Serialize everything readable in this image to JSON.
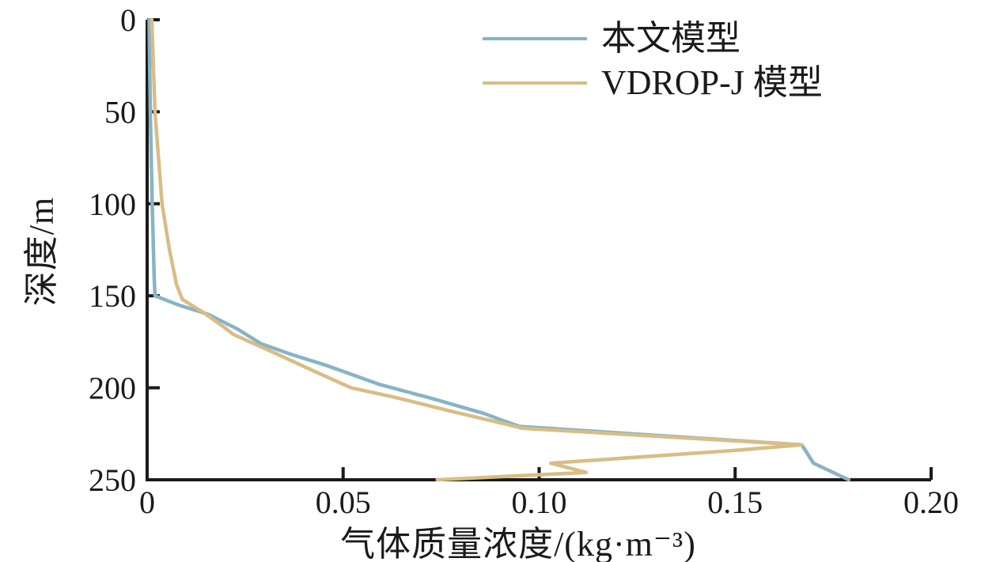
{
  "figure": {
    "background": "#ffffff",
    "axis_color": "#1a1a1a",
    "text_color": "#1a1a1a"
  },
  "legend": {
    "items": [
      {
        "label": "本文模型",
        "color": "#87b4c5"
      },
      {
        "label": "VDROP-J 模型",
        "color": "#d9bd85"
      }
    ]
  },
  "chart_data": {
    "type": "line",
    "title": "",
    "xlabel": "气体质量浓度/(kg·m⁻³)",
    "ylabel": "深度/m",
    "xlim": [
      0,
      0.2
    ],
    "ylim": [
      0,
      250
    ],
    "y_inverted": true,
    "grid": false,
    "legend_position": "upper center",
    "x_ticks": [
      0,
      0.05,
      0.1,
      0.15,
      0.2
    ],
    "x_tick_labels": [
      "0",
      "0.05",
      "0.10",
      "0.15",
      "0.20"
    ],
    "y_ticks": [
      0,
      50,
      100,
      150,
      200,
      250
    ],
    "y_tick_labels": [
      "0",
      "50",
      "100",
      "150",
      "200",
      "250"
    ],
    "series": [
      {
        "name": "本文模型",
        "color": "#87b4c5",
        "points_format": "[concentration_kg_per_m3, depth_m]",
        "points": [
          [
            0.0005,
            0
          ],
          [
            0.0008,
            50
          ],
          [
            0.0013,
            100
          ],
          [
            0.0018,
            140
          ],
          [
            0.002,
            150
          ],
          [
            0.008,
            155
          ],
          [
            0.0155,
            160
          ],
          [
            0.023,
            168
          ],
          [
            0.029,
            176
          ],
          [
            0.037,
            182
          ],
          [
            0.046,
            188
          ],
          [
            0.059,
            198
          ],
          [
            0.073,
            206
          ],
          [
            0.086,
            214
          ],
          [
            0.091,
            218
          ],
          [
            0.095,
            221
          ],
          [
            0.167,
            231
          ],
          [
            0.17,
            241
          ],
          [
            0.179,
            250
          ]
        ]
      },
      {
        "name": "VDROP-J 模型",
        "color": "#d9bd85",
        "points_format": "[concentration_kg_per_m3, depth_m]",
        "points": [
          [
            0.0012,
            0
          ],
          [
            0.002,
            50
          ],
          [
            0.0038,
            100
          ],
          [
            0.0057,
            125
          ],
          [
            0.0075,
            144
          ],
          [
            0.009,
            152
          ],
          [
            0.0143,
            159
          ],
          [
            0.0196,
            167
          ],
          [
            0.022,
            171
          ],
          [
            0.0325,
            181
          ],
          [
            0.0426,
            191
          ],
          [
            0.052,
            200
          ],
          [
            0.0628,
            205
          ],
          [
            0.0781,
            213
          ],
          [
            0.09,
            219
          ],
          [
            0.0957,
            222
          ],
          [
            0.167,
            231
          ],
          [
            0.15,
            234
          ],
          [
            0.103,
            241
          ],
          [
            0.112,
            246
          ],
          [
            0.074,
            250
          ]
        ]
      }
    ]
  }
}
